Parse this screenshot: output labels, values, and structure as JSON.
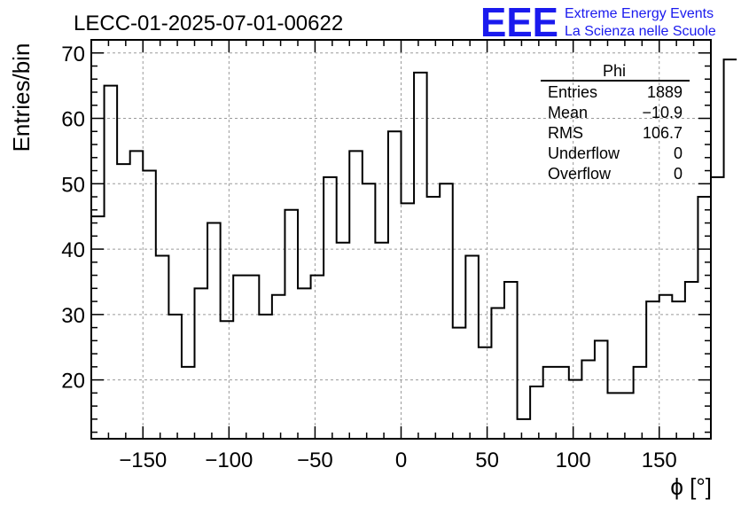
{
  "header": {
    "title": "LECC-01-2025-07-01-00622",
    "logo_text": "EEE",
    "logo_line1": "Extreme Energy Events",
    "logo_line2": "La Scienza nelle Scuole"
  },
  "colors": {
    "logo": "#1a1aee",
    "line": "#000000",
    "grid": "#9a9a9a",
    "background": "#ffffff"
  },
  "stats": {
    "title": "Phi",
    "rows": [
      {
        "label": "Entries",
        "value": "1889"
      },
      {
        "label": "Mean",
        "value": "−10.9"
      },
      {
        "label": "RMS",
        "value": "106.7"
      },
      {
        "label": "Underflow",
        "value": "0"
      },
      {
        "label": "Overflow",
        "value": "0"
      }
    ]
  },
  "chart_data": {
    "type": "histogram",
    "ylabel": "Entries/bin",
    "xlabel": "ϕ [°]",
    "xlim": [
      -180,
      180
    ],
    "ylim": [
      11,
      72
    ],
    "bin_width": 7.5,
    "x_ticks": [
      -150,
      -100,
      -50,
      0,
      50,
      100,
      150
    ],
    "x_tick_labels": [
      "−150",
      "−100",
      "−50",
      "0",
      "50",
      "100",
      "150"
    ],
    "y_ticks": [
      20,
      30,
      40,
      50,
      60,
      70
    ],
    "y_tick_labels": [
      "20",
      "30",
      "40",
      "50",
      "60",
      "70"
    ],
    "grid": true,
    "values": [
      45,
      65,
      53,
      55,
      52,
      39,
      30,
      22,
      34,
      44,
      29,
      36,
      36,
      30,
      33,
      46,
      34,
      36,
      51,
      41,
      55,
      50,
      41,
      58,
      47,
      67,
      48,
      50,
      28,
      39,
      25,
      31,
      35,
      14,
      19,
      22,
      22,
      20,
      23,
      26,
      18,
      18,
      22,
      32,
      33,
      32,
      35,
      48,
      51,
      69
    ]
  }
}
